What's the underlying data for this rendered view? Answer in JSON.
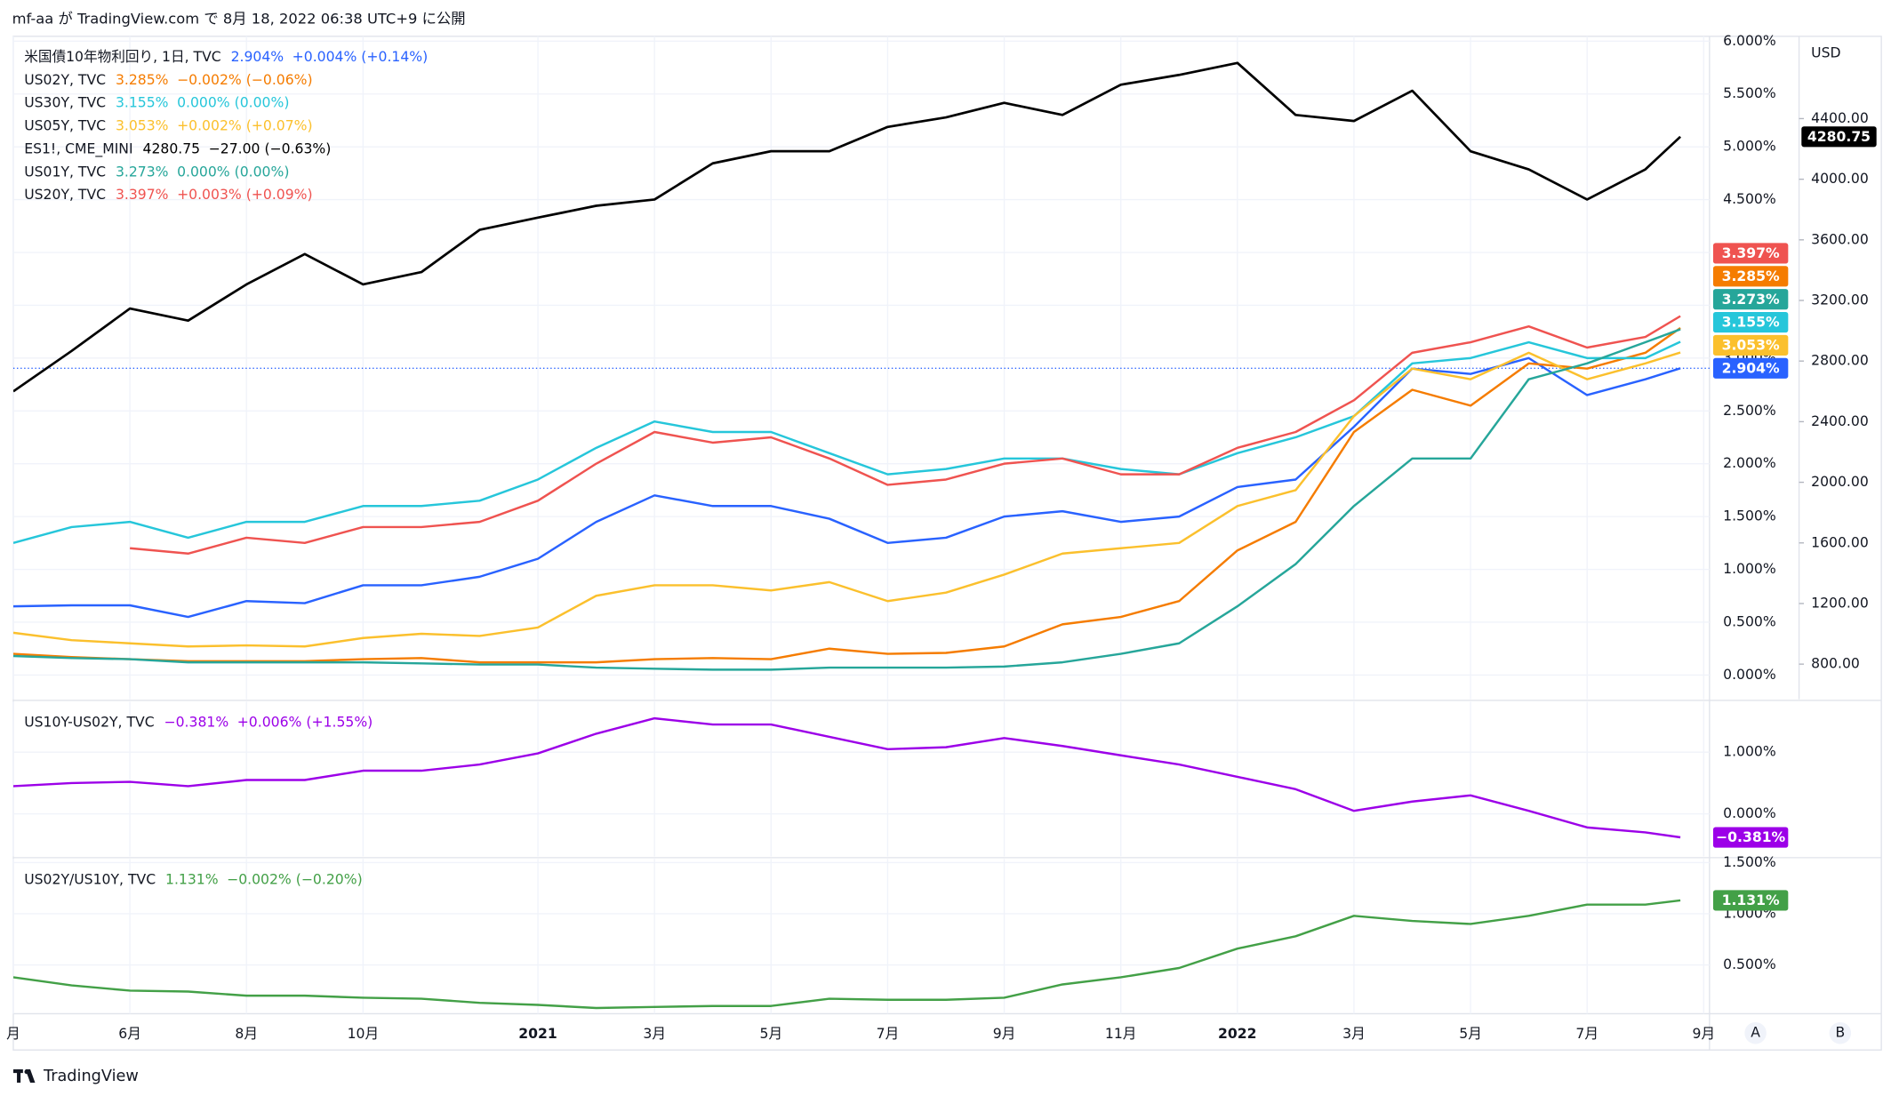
{
  "header": {
    "text": "mf-aa が TradingView.com で 8月 18, 2022 06:38 UTC+9 に公開"
  },
  "footer": {
    "brand": "TradingView"
  },
  "buttons": [
    "A",
    "B"
  ],
  "chart_data": [
    {
      "type": "line",
      "x": [
        0,
        1,
        2,
        3,
        4,
        5,
        6,
        7,
        8,
        9,
        10,
        11,
        12,
        13,
        14,
        15,
        16,
        17,
        18,
        19,
        20,
        21,
        22,
        23,
        24,
        25,
        26,
        27,
        28,
        28.6
      ],
      "xlim": [
        0,
        29.1
      ],
      "ylim": [
        -0.229,
        6.046
      ],
      "yticks": [
        {
          "value": 0,
          "label": "0.000%"
        },
        {
          "value": 0.5,
          "label": "0.500%"
        },
        {
          "value": 1,
          "label": "1.000%"
        },
        {
          "value": 1.5,
          "label": "1.500%"
        },
        {
          "value": 2,
          "label": "2.000%"
        },
        {
          "value": 2.5,
          "label": "2.500%"
        },
        {
          "value": 3,
          "label": "3.000%"
        },
        {
          "value": 3.5,
          "label": "3.500%"
        },
        {
          "value": 4,
          "label": "4.000%"
        },
        {
          "value": 4.5,
          "label": "4.500%"
        },
        {
          "value": 5,
          "label": "5.000%"
        },
        {
          "value": 5.5,
          "label": "5.500%"
        },
        {
          "value": 6,
          "label": "6.000%"
        }
      ],
      "y2label": "USD",
      "y2lim": [
        568.5,
        4943
      ],
      "y2ticks": [
        {
          "value": 800,
          "label": "800.00"
        },
        {
          "value": 1200,
          "label": "1200.00"
        },
        {
          "value": 1600,
          "label": "1600.00"
        },
        {
          "value": 2000,
          "label": "2000.00"
        },
        {
          "value": 2400,
          "label": "2400.00"
        },
        {
          "value": 2800,
          "label": "2800.00"
        },
        {
          "value": 3200,
          "label": "3200.00"
        },
        {
          "value": 3600,
          "label": "3600.00"
        },
        {
          "value": 4000,
          "label": "4000.00"
        },
        {
          "value": 4400,
          "label": "4400.00"
        }
      ],
      "grid": true,
      "last_price_line": true,
      "series": [
        {
          "name": "米国債10年物利回り, 1日, TVC",
          "color": "#2962ff",
          "last_label": "2.904%",
          "change": "+0.004% (+0.14%)",
          "values": [
            0.65,
            0.66,
            0.66,
            0.55,
            0.7,
            0.68,
            0.85,
            0.85,
            0.93,
            1.1,
            1.45,
            1.7,
            1.6,
            1.6,
            1.48,
            1.25,
            1.3,
            1.5,
            1.55,
            1.45,
            1.5,
            1.78,
            1.85,
            2.35,
            2.9,
            2.85,
            3.0,
            2.65,
            2.8,
            2.904
          ]
        },
        {
          "name": "US02Y, TVC",
          "color": "#f57c00",
          "last_label": "3.285%",
          "change": "−0.002% (−0.06%)",
          "values": [
            0.2,
            0.17,
            0.15,
            0.13,
            0.13,
            0.13,
            0.15,
            0.16,
            0.12,
            0.12,
            0.12,
            0.15,
            0.16,
            0.15,
            0.25,
            0.2,
            0.21,
            0.27,
            0.48,
            0.55,
            0.7,
            1.18,
            1.45,
            2.3,
            2.7,
            2.55,
            2.95,
            2.9,
            3.05,
            3.285
          ]
        },
        {
          "name": "US30Y, TVC",
          "color": "#26c6da",
          "last_label": "3.155%",
          "change": "0.000% (0.00%)",
          "values": [
            1.25,
            1.4,
            1.45,
            1.3,
            1.45,
            1.45,
            1.6,
            1.6,
            1.65,
            1.85,
            2.15,
            2.4,
            2.3,
            2.3,
            2.1,
            1.9,
            1.95,
            2.05,
            2.05,
            1.95,
            1.9,
            2.1,
            2.25,
            2.45,
            2.95,
            3.0,
            3.15,
            3.0,
            3.0,
            3.155
          ]
        },
        {
          "name": "US05Y, TVC",
          "color": "#fbc02d",
          "last_label": "3.053%",
          "change": "+0.002% (+0.07%)",
          "values": [
            0.4,
            0.33,
            0.3,
            0.27,
            0.28,
            0.27,
            0.35,
            0.39,
            0.37,
            0.45,
            0.75,
            0.85,
            0.85,
            0.8,
            0.88,
            0.7,
            0.78,
            0.95,
            1.15,
            1.2,
            1.25,
            1.6,
            1.75,
            2.45,
            2.9,
            2.8,
            3.05,
            2.8,
            2.95,
            3.053
          ]
        },
        {
          "name": "ES1!, CME_MINI",
          "color": "#000000",
          "axis": "y2",
          "last_label": "4280.75",
          "change": "−27.00 (−0.63%)",
          "values": [
            2600,
            2867,
            3147,
            3067,
            3306,
            3506,
            3306,
            3387,
            3666,
            3746,
            3825,
            3866,
            4105,
            4185,
            4185,
            4345,
            4408,
            4504,
            4424,
            4624,
            4688,
            4767,
            4424,
            4384,
            4584,
            4185,
            4065,
            3866,
            4065,
            4280.75
          ]
        },
        {
          "name": "US01Y, TVC",
          "color": "#26a69a",
          "last_label": "3.273%",
          "change": "0.000% (0.00%)",
          "values": [
            0.18,
            0.16,
            0.15,
            0.12,
            0.12,
            0.12,
            0.12,
            0.11,
            0.1,
            0.1,
            0.07,
            0.06,
            0.05,
            0.05,
            0.07,
            0.07,
            0.07,
            0.08,
            0.12,
            0.2,
            0.3,
            0.65,
            1.05,
            1.6,
            2.05,
            2.05,
            2.8,
            2.95,
            3.15,
            3.273
          ]
        },
        {
          "name": "US20Y, TVC",
          "color": "#ef5350",
          "last_label": "3.397%",
          "change": "+0.003% (+0.09%)",
          "values": [
            null,
            null,
            1.2,
            1.15,
            1.3,
            1.25,
            1.4,
            1.4,
            1.45,
            1.65,
            2.0,
            2.3,
            2.2,
            2.25,
            2.05,
            1.8,
            1.85,
            2.0,
            2.05,
            1.9,
            1.9,
            2.15,
            2.3,
            2.6,
            3.05,
            3.15,
            3.3,
            3.1,
            3.2,
            3.397
          ]
        }
      ]
    },
    {
      "type": "line",
      "x": [
        0,
        1,
        2,
        3,
        4,
        5,
        6,
        7,
        8,
        9,
        10,
        11,
        12,
        13,
        14,
        15,
        16,
        17,
        18,
        19,
        20,
        21,
        22,
        23,
        24,
        25,
        26,
        27,
        28,
        28.6
      ],
      "xlim": [
        0,
        29.1
      ],
      "ylim": [
        -0.69,
        1.82
      ],
      "yticks": [
        {
          "value": 0,
          "label": "0.000%"
        },
        {
          "value": 1,
          "label": "1.000%"
        }
      ],
      "grid": true,
      "series": [
        {
          "name": "US10Y-US02Y, TVC",
          "color": "#9c00e8",
          "last_label": "−0.381%",
          "change": "+0.006% (+1.55%)",
          "values": [
            0.45,
            0.5,
            0.52,
            0.45,
            0.55,
            0.55,
            0.7,
            0.7,
            0.8,
            0.98,
            1.3,
            1.55,
            1.45,
            1.45,
            1.25,
            1.05,
            1.08,
            1.23,
            1.1,
            0.95,
            0.8,
            0.6,
            0.4,
            0.05,
            0.2,
            0.3,
            0.05,
            -0.22,
            -0.3,
            -0.381
          ]
        }
      ]
    },
    {
      "type": "line",
      "x": [
        0,
        1,
        2,
        3,
        4,
        5,
        6,
        7,
        8,
        9,
        10,
        11,
        12,
        13,
        14,
        15,
        16,
        17,
        18,
        19,
        20,
        21,
        22,
        23,
        24,
        25,
        26,
        27,
        28,
        28.6
      ],
      "xlim": [
        0,
        29.1
      ],
      "xticks": [
        {
          "value": 0,
          "label": "月"
        },
        {
          "value": 2,
          "label": "6月"
        },
        {
          "value": 4,
          "label": "8月"
        },
        {
          "value": 6,
          "label": "10月"
        },
        {
          "value": 9,
          "label": "2021"
        },
        {
          "value": 11,
          "label": "3月"
        },
        {
          "value": 13,
          "label": "5月"
        },
        {
          "value": 15,
          "label": "7月"
        },
        {
          "value": 17,
          "label": "9月"
        },
        {
          "value": 19,
          "label": "11月"
        },
        {
          "value": 21,
          "label": "2022"
        },
        {
          "value": 23,
          "label": "3月"
        },
        {
          "value": 25,
          "label": "5月"
        },
        {
          "value": 27,
          "label": "7月"
        },
        {
          "value": 29,
          "label": "9月"
        }
      ],
      "ylim": [
        0.024,
        1.536
      ],
      "yticks": [
        {
          "value": 0.5,
          "label": "0.500%"
        },
        {
          "value": 1,
          "label": "1.000%"
        },
        {
          "value": 1.5,
          "label": "1.500%"
        }
      ],
      "grid": true,
      "series": [
        {
          "name": "US02Y/US10Y, TVC",
          "color": "#43a047",
          "last_label": "1.131%",
          "change": "−0.002% (−0.20%)",
          "values": [
            0.38,
            0.3,
            0.25,
            0.24,
            0.2,
            0.2,
            0.18,
            0.17,
            0.13,
            0.11,
            0.08,
            0.09,
            0.1,
            0.1,
            0.17,
            0.16,
            0.16,
            0.18,
            0.31,
            0.38,
            0.47,
            0.66,
            0.78,
            0.98,
            0.93,
            0.9,
            0.98,
            1.09,
            1.09,
            1.131
          ]
        }
      ]
    }
  ]
}
